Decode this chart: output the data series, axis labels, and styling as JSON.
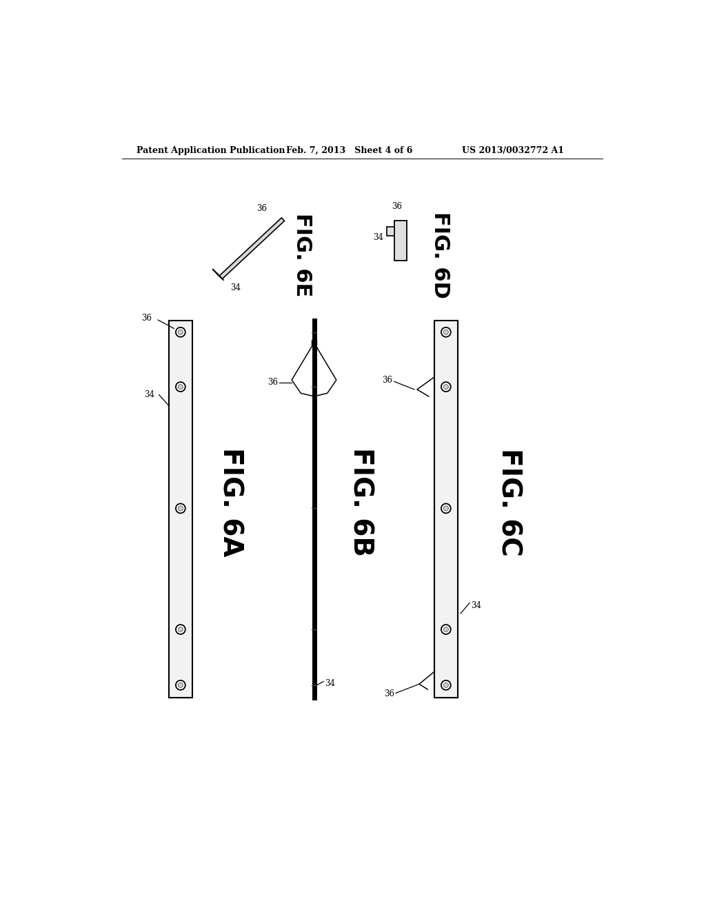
{
  "bg_color": "#ffffff",
  "header_left": "Patent Application Publication",
  "header_mid": "Feb. 7, 2013   Sheet 4 of 6",
  "header_right": "US 2013/0032772 A1",
  "fig_6a_label": "FIG. 6A",
  "fig_6b_label": "FIG. 6B",
  "fig_6c_label": "FIG. 6C",
  "fig_6d_label": "FIG. 6D",
  "fig_6e_label": "FIG. 6E",
  "ref_34": "34",
  "ref_36": "36",
  "rail_color": "#f0f0f0",
  "rail_edge": "#000000",
  "bolt_outer": "#ffffff",
  "bolt_inner": "#cccccc"
}
